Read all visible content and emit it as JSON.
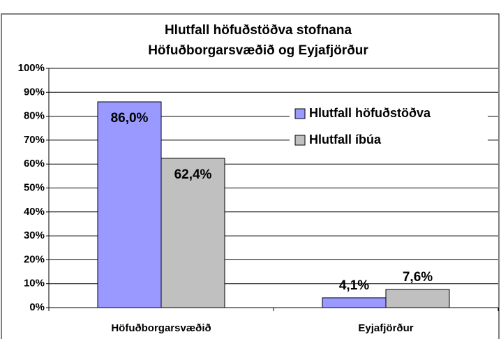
{
  "chart_data": {
    "type": "bar",
    "title": [
      "Hlutfall höfuðstöðva stofnana",
      "Höfuðborgarsvæðið og Eyjafjörður"
    ],
    "categories": [
      "Höfuðborgarsvæðið",
      "Eyjafjörður"
    ],
    "series": [
      {
        "name": "Hlutfall höfuðstöðva",
        "color": "#9999ff",
        "values": [
          86.0,
          4.1
        ],
        "value_labels": [
          "86,0%",
          "4,1%"
        ]
      },
      {
        "name": "Hlutfall íbúa",
        "color": "#c0c0c0",
        "values": [
          62.4,
          7.6
        ],
        "value_labels": [
          "62,4%",
          "7,6%"
        ]
      }
    ],
    "ylim": [
      0,
      100
    ],
    "yticks": [
      {
        "value": 0,
        "label": "0%"
      },
      {
        "value": 10,
        "label": "10%"
      },
      {
        "value": 20,
        "label": "20%"
      },
      {
        "value": 30,
        "label": "30%"
      },
      {
        "value": 40,
        "label": "40%"
      },
      {
        "value": 50,
        "label": "50%"
      },
      {
        "value": 60,
        "label": "60%"
      },
      {
        "value": 70,
        "label": "70%"
      },
      {
        "value": 80,
        "label": "80%"
      },
      {
        "value": 90,
        "label": "90%"
      },
      {
        "value": 100,
        "label": "100%"
      }
    ],
    "grid": true,
    "legend": "upper right"
  }
}
